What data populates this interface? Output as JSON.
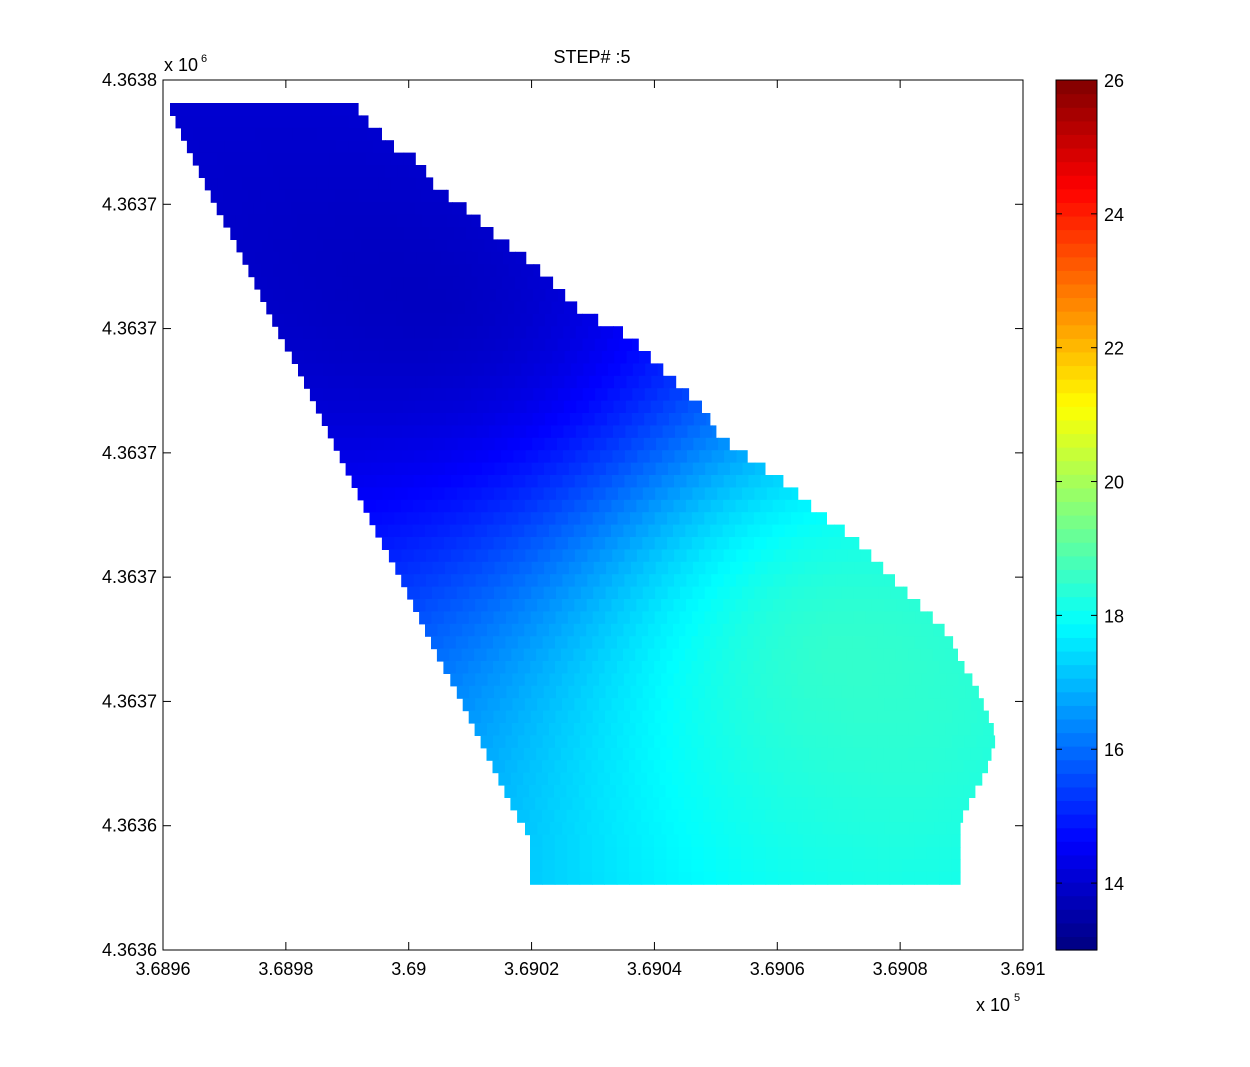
{
  "chart_data": {
    "type": "heatmap",
    "title": "STEP# :5",
    "xlabel": "",
    "ylabel": "",
    "x_exponent": {
      "base": "x 10",
      "power": "5"
    },
    "y_exponent": {
      "base": "x 10",
      "power": "6"
    },
    "xlim": [
      3.6896,
      3.691
    ],
    "ylim": [
      4.3636,
      4.3638
    ],
    "x_ticks": [
      {
        "value": 3.6896,
        "label": "3.6896"
      },
      {
        "value": 3.6898,
        "label": "3.6898"
      },
      {
        "value": 3.69,
        "label": "3.69"
      },
      {
        "value": 3.6902,
        "label": "3.6902"
      },
      {
        "value": 3.6904,
        "label": "3.6904"
      },
      {
        "value": 3.6906,
        "label": "3.6906"
      },
      {
        "value": 3.6908,
        "label": "3.6908"
      },
      {
        "value": 3.691,
        "label": "3.691"
      }
    ],
    "y_tick_labels": [
      "4.3638",
      "4.3637",
      "4.3637",
      "4.3637",
      "4.3637",
      "4.3637",
      "4.3636",
      "4.3636"
    ],
    "colorbar": {
      "colormap": "jet",
      "clim": [
        13,
        26
      ],
      "ticks": [
        14,
        16,
        18,
        20,
        22,
        24,
        26
      ]
    },
    "grid": false,
    "field": {
      "low_center": {
        "x": 3.69007,
        "y_fraction_of_range": 0.738,
        "value": 13.3
      },
      "high_center": {
        "x": 3.69069,
        "y_fraction_of_range": 0.345,
        "value": 19.0
      },
      "min_value": 13.3,
      "max_value": 19.0
    }
  }
}
